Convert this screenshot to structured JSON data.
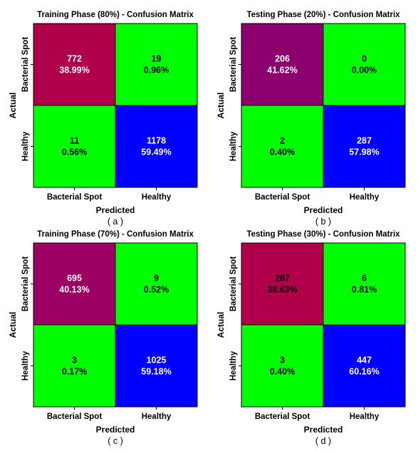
{
  "chart_data": [
    {
      "type": "heatmap",
      "title": "Training Phase (80%) - Confusion Matrix",
      "xlabel": "Predicted",
      "ylabel": "Actual",
      "x_tick_labels": [
        "Bacterial Spot",
        "Healthy"
      ],
      "y_tick_labels": [
        "Bacterial Spot",
        "Healthy"
      ],
      "caption": "( a )",
      "cells": [
        [
          {
            "count": "772",
            "percent": "38.99%",
            "color": "#b1004a",
            "text_color": "#ffffff"
          },
          {
            "count": "19",
            "percent": "0.96%",
            "color": "#00ff00",
            "text_color": "#000000"
          }
        ],
        [
          {
            "count": "11",
            "percent": "0.56%",
            "color": "#00ff00",
            "text_color": "#000000"
          },
          {
            "count": "1178",
            "percent": "59.49%",
            "color": "#0000ff",
            "text_color": "#ffffff"
          }
        ]
      ]
    },
    {
      "type": "heatmap",
      "title": "Testing Phase (20%) - Confusion Matrix",
      "xlabel": "Predicted",
      "ylabel": "Actual",
      "x_tick_labels": [
        "Bacterial Spot",
        "Healthy"
      ],
      "y_tick_labels": [
        "Bacterial Spot",
        "Healthy"
      ],
      "caption": "( b )",
      "cells": [
        [
          {
            "count": "206",
            "percent": "41.62%",
            "color": "#8c006e",
            "text_color": "#ffffff"
          },
          {
            "count": "0",
            "percent": "0.00%",
            "color": "#00ff00",
            "text_color": "#000000"
          }
        ],
        [
          {
            "count": "2",
            "percent": "0.40%",
            "color": "#00ff00",
            "text_color": "#000000"
          },
          {
            "count": "287",
            "percent": "57.98%",
            "color": "#0000ff",
            "text_color": "#ffffff"
          }
        ]
      ]
    },
    {
      "type": "heatmap",
      "title": "Training Phase (70%) - Confusion Matrix",
      "xlabel": "Predicted",
      "ylabel": "Actual",
      "x_tick_labels": [
        "Bacterial Spot",
        "Healthy"
      ],
      "y_tick_labels": [
        "Bacterial Spot",
        "Healthy"
      ],
      "caption": "( c )",
      "cells": [
        [
          {
            "count": "695",
            "percent": "40.13%",
            "color": "#9b0062",
            "text_color": "#ffffff"
          },
          {
            "count": "9",
            "percent": "0.52%",
            "color": "#00ff00",
            "text_color": "#000000"
          }
        ],
        [
          {
            "count": "3",
            "percent": "0.17%",
            "color": "#00ff00",
            "text_color": "#000000"
          },
          {
            "count": "1025",
            "percent": "59.18%",
            "color": "#0000ff",
            "text_color": "#ffffff"
          }
        ]
      ]
    },
    {
      "type": "heatmap",
      "title": "Testing Phase (30%) - Confusion Matrix",
      "xlabel": "Predicted",
      "ylabel": "Actual",
      "x_tick_labels": [
        "Bacterial Spot",
        "Healthy"
      ],
      "y_tick_labels": [
        "Bacterial Spot",
        "Healthy"
      ],
      "caption": "( d )",
      "cells": [
        [
          {
            "count": "287",
            "percent": "38.63%",
            "color": "#b1004a",
            "text_color": "#000000"
          },
          {
            "count": "6",
            "percent": "0.81%",
            "color": "#00ff00",
            "text_color": "#000000"
          }
        ],
        [
          {
            "count": "3",
            "percent": "0.40%",
            "color": "#00ff00",
            "text_color": "#000000"
          },
          {
            "count": "447",
            "percent": "60.16%",
            "color": "#0000ff",
            "text_color": "#ffffff"
          }
        ]
      ]
    }
  ]
}
